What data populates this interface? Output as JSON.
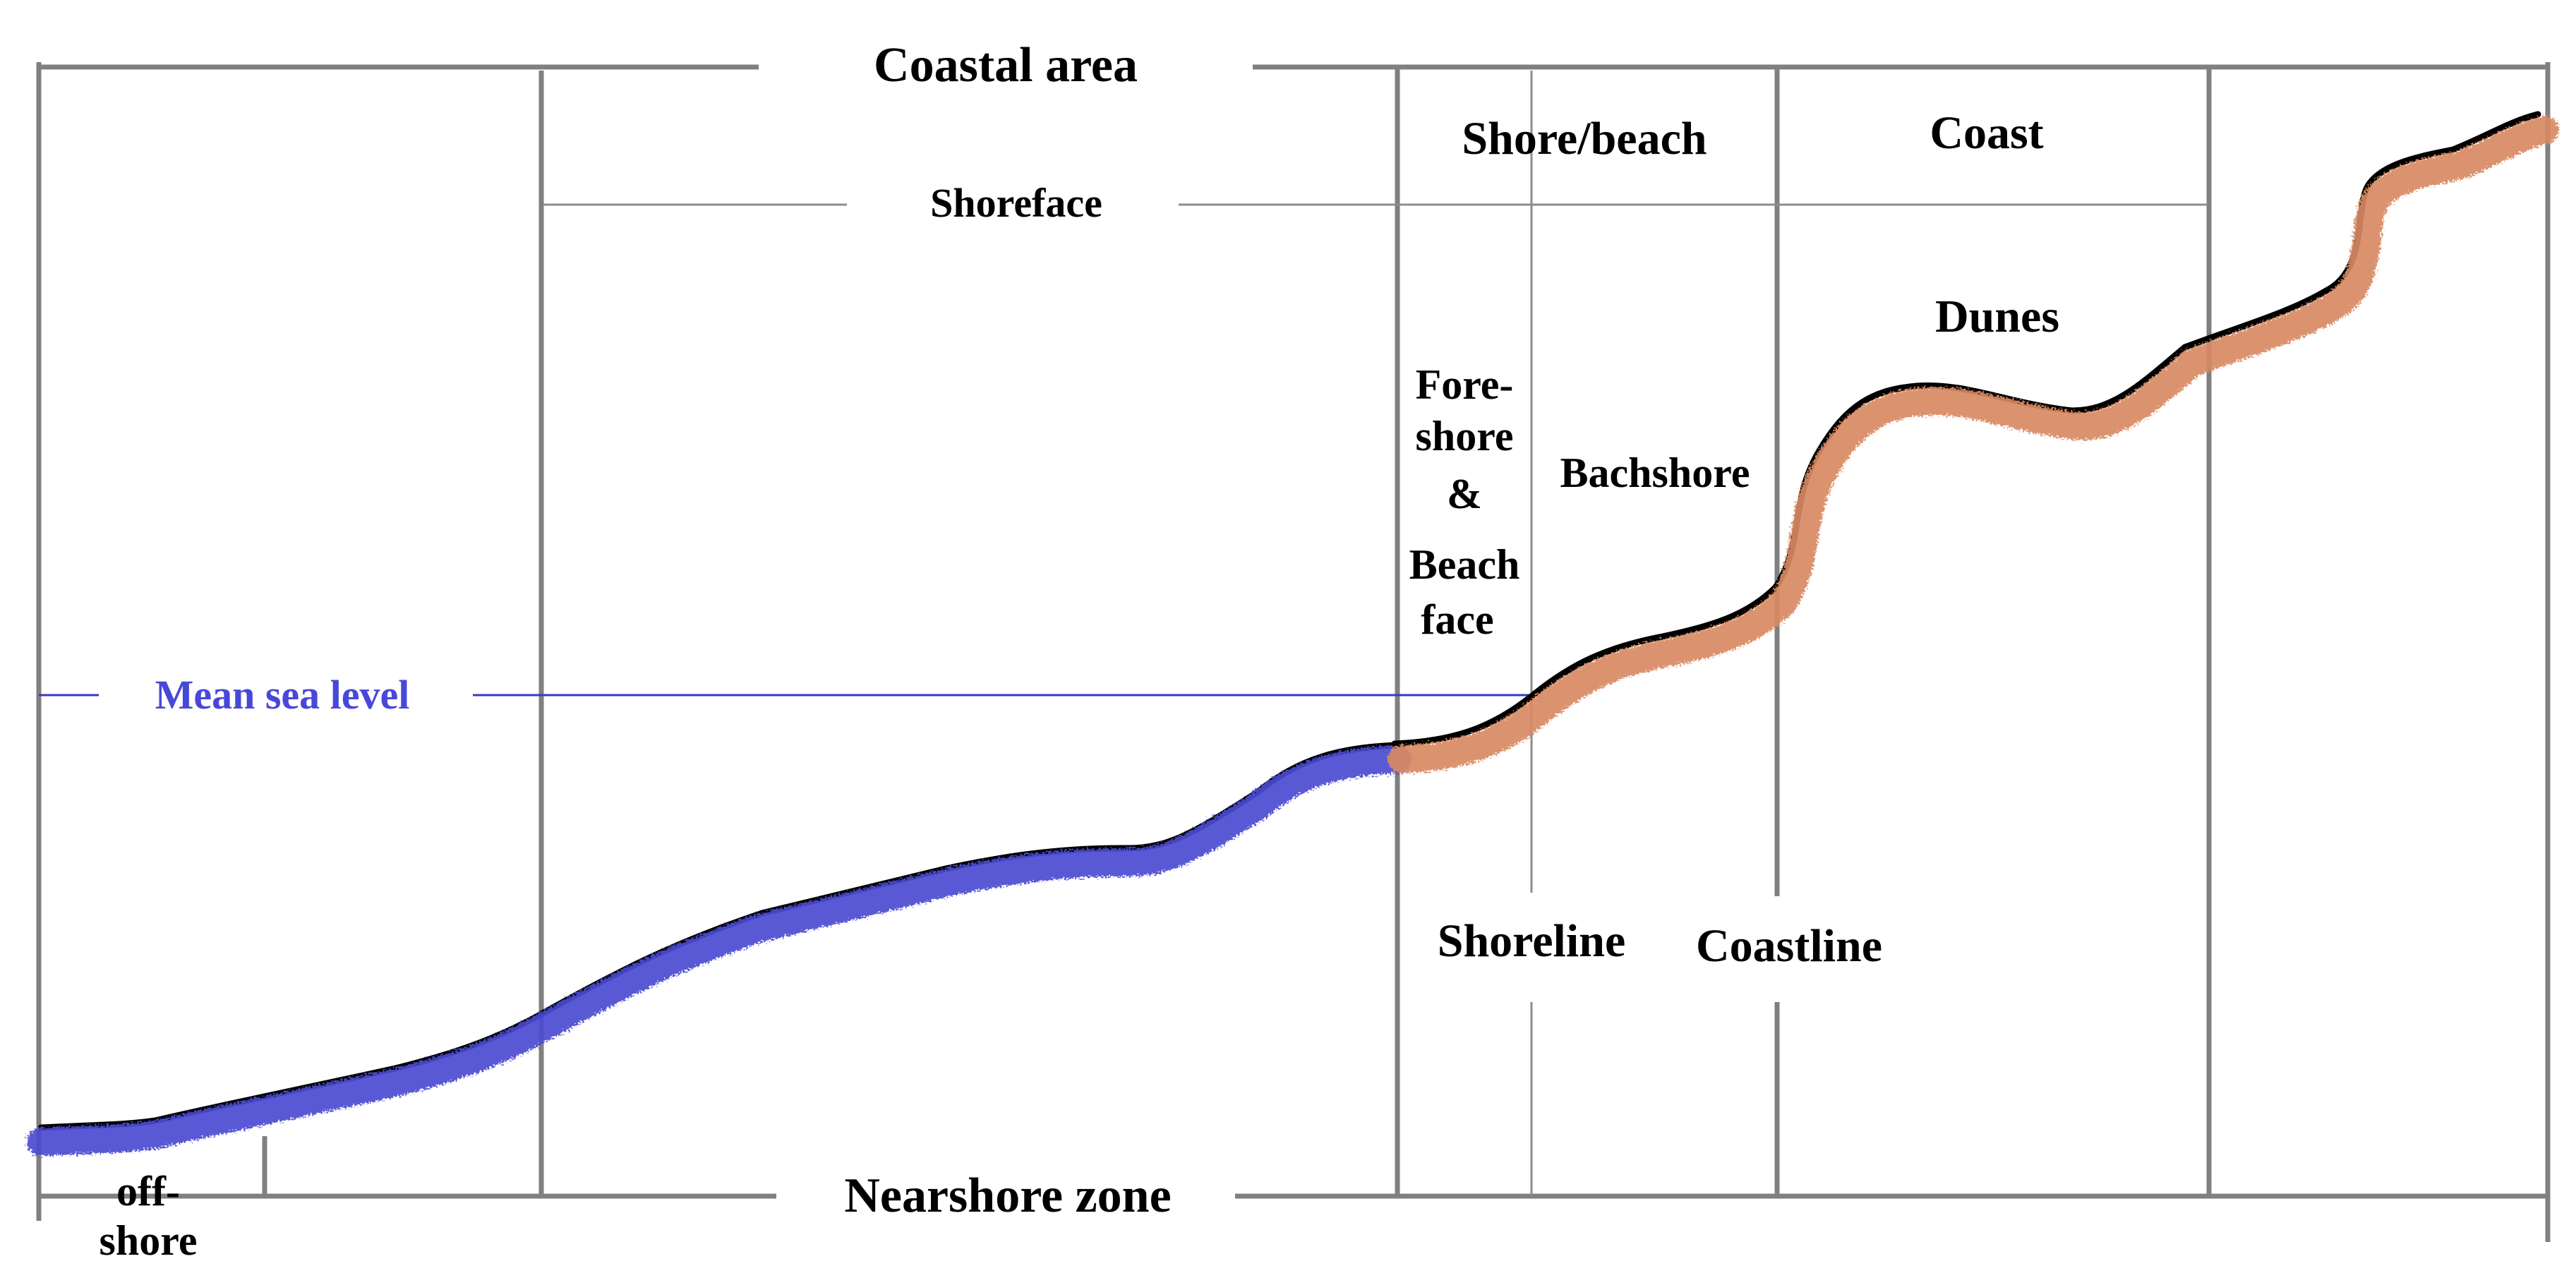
{
  "labels": {
    "coastal_area": "Coastal area",
    "shoreface": "Shoreface",
    "shore_beach": "Shore/beach",
    "coast": "Coast",
    "dunes": "Dunes",
    "foreshore": [
      "Fore-",
      "shore",
      "&",
      "Beach",
      "face"
    ],
    "backshore": "Bachshore",
    "mean_sea_level": "Mean sea level",
    "shoreline": "Shoreline",
    "coastline": "Coastline",
    "nearshore_zone": "Nearshore zone",
    "offshore": [
      "off-",
      "shore"
    ]
  },
  "colors": {
    "frame": "#808080",
    "thin_line": "#8c8c8c",
    "sea_level": "#3838c8",
    "sea_level_text": "#4848d8",
    "submerged_profile": "#4c4cd2",
    "emerged_profile": "#d88a64",
    "profile_outline": "#000000",
    "text": "#000000"
  }
}
